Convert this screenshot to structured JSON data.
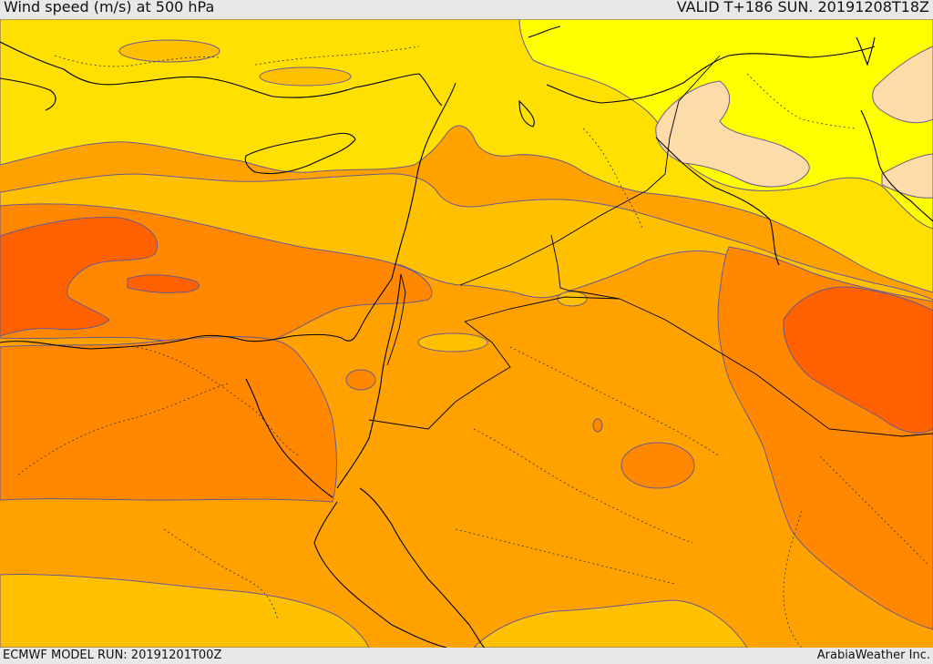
{
  "header": {
    "title": "Wind speed (m/s) at 500 hPa",
    "valid_time": "VALID T+186 SUN. 20191208T18Z"
  },
  "footer": {
    "model_run": "ECMWF MODEL RUN: 20191201T00Z",
    "credit": "ArabiaWeather Inc."
  },
  "map": {
    "field": "wind speed at 500 hPa",
    "colors": {
      "light_peach": "#fddcaa",
      "bright_yellow": "#ffff00",
      "yellow": "#ffe000",
      "golden": "#ffc000",
      "light_orange": "#ffa200",
      "orange": "#ff8800",
      "dark_orange": "#ff6000",
      "contour": "#6b5a8a",
      "border": "#000000"
    }
  }
}
